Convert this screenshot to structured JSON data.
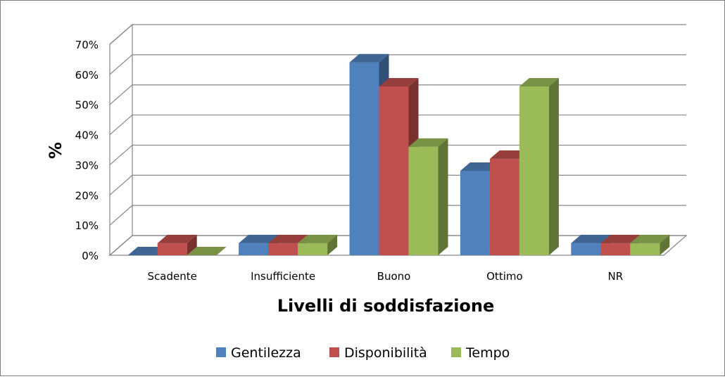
{
  "chart_data": {
    "type": "bar",
    "title": "",
    "xlabel": "Livelli di soddisfazione",
    "ylabel": "%",
    "ylim": [
      0,
      70
    ],
    "yticks": [
      "0%",
      "10%",
      "20%",
      "30%",
      "40%",
      "50%",
      "60%",
      "70%"
    ],
    "categories": [
      "Scadente",
      "Insufficiente",
      "Buono",
      "Ottimo",
      "NR"
    ],
    "series": [
      {
        "name": "Gentilezza",
        "values": [
          0,
          4,
          64,
          28,
          4
        ],
        "color": "#4f81bd"
      },
      {
        "name": "Disponibilità",
        "values": [
          4,
          4,
          56,
          32,
          4
        ],
        "color": "#c0504d"
      },
      {
        "name": "Tempo",
        "values": [
          0,
          4,
          36,
          56,
          4
        ],
        "color": "#9bbb59"
      }
    ],
    "grid": true,
    "legend_position": "bottom",
    "style": "3d-clustered-column"
  }
}
